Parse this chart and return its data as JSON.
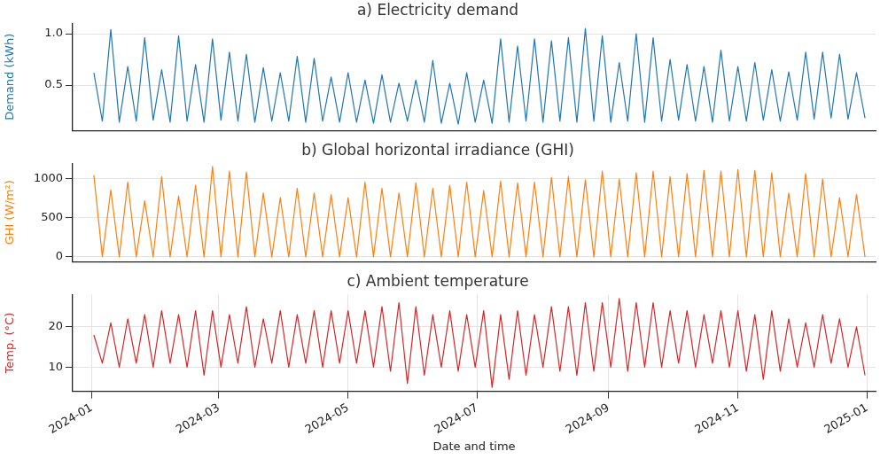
{
  "chart_data": [
    {
      "type": "line",
      "title": "a) Electricity demand",
      "ylabel": "Demand (kWh)",
      "grid": true,
      "legend": false,
      "tick_labels": "y",
      "marker": "none",
      "x": [
        "2024-01-02",
        "2024-01-06",
        "2024-01-10",
        "2024-01-14",
        "2024-01-18",
        "2024-01-22",
        "2024-01-26",
        "2024-01-30",
        "2024-02-03",
        "2024-02-07",
        "2024-02-11",
        "2024-02-15",
        "2024-02-19",
        "2024-02-23",
        "2024-02-27",
        "2024-03-02",
        "2024-03-06",
        "2024-03-10",
        "2024-03-14",
        "2024-03-18",
        "2024-03-22",
        "2024-03-26",
        "2024-03-30",
        "2024-04-03",
        "2024-04-07",
        "2024-04-11",
        "2024-04-15",
        "2024-04-19",
        "2024-04-23",
        "2024-04-27",
        "2024-05-01",
        "2024-05-05",
        "2024-05-09",
        "2024-05-13",
        "2024-05-17",
        "2024-05-21",
        "2024-05-25",
        "2024-05-29",
        "2024-06-02",
        "2024-06-06",
        "2024-06-10",
        "2024-06-14",
        "2024-06-18",
        "2024-06-22",
        "2024-06-26",
        "2024-06-30",
        "2024-07-04",
        "2024-07-08",
        "2024-07-12",
        "2024-07-16",
        "2024-07-20",
        "2024-07-24",
        "2024-07-28",
        "2024-08-01",
        "2024-08-05",
        "2024-08-09",
        "2024-08-13",
        "2024-08-17",
        "2024-08-21",
        "2024-08-25",
        "2024-08-29",
        "2024-09-02",
        "2024-09-06",
        "2024-09-10",
        "2024-09-14",
        "2024-09-18",
        "2024-09-22",
        "2024-09-26",
        "2024-09-30",
        "2024-10-04",
        "2024-10-08",
        "2024-10-12",
        "2024-10-16",
        "2024-10-20",
        "2024-10-24",
        "2024-10-28",
        "2024-11-01",
        "2024-11-05",
        "2024-11-09",
        "2024-11-13",
        "2024-11-17",
        "2024-11-21",
        "2024-11-25",
        "2024-11-29",
        "2024-12-03",
        "2024-12-07",
        "2024-12-11",
        "2024-12-15",
        "2024-12-19",
        "2024-12-23",
        "2024-12-27",
        "2024-12-31"
      ],
      "xlim": [
        "2023-12-23",
        "2025-01-05"
      ],
      "ylim": [
        0.06,
        1.1
      ],
      "yticks": [
        0.5,
        {
          "value": 1,
          "label": "1.0"
        }
      ],
      "series": [
        {
          "color": "#1f77b4",
          "values": [
            0.62,
            0.15,
            1.04,
            0.14,
            0.68,
            0.15,
            0.96,
            0.16,
            0.65,
            0.14,
            0.98,
            0.15,
            0.7,
            0.14,
            0.95,
            0.16,
            0.82,
            0.15,
            0.8,
            0.14,
            0.67,
            0.15,
            0.62,
            0.15,
            0.78,
            0.14,
            0.76,
            0.15,
            0.58,
            0.14,
            0.62,
            0.14,
            0.55,
            0.13,
            0.6,
            0.14,
            0.52,
            0.15,
            0.55,
            0.14,
            0.74,
            0.13,
            0.52,
            0.12,
            0.62,
            0.14,
            0.55,
            0.13,
            0.95,
            0.14,
            0.88,
            0.15,
            0.95,
            0.14,
            0.93,
            0.15,
            0.96,
            0.14,
            1.05,
            0.15,
            0.98,
            0.14,
            0.72,
            0.15,
            1.0,
            0.14,
            0.96,
            0.15,
            0.75,
            0.16,
            0.7,
            0.15,
            0.68,
            0.14,
            0.84,
            0.15,
            0.68,
            0.15,
            0.72,
            0.16,
            0.65,
            0.15,
            0.63,
            0.16,
            0.82,
            0.17,
            0.82,
            0.18,
            0.8,
            0.17,
            0.62,
            0.18
          ]
        }
      ]
    },
    {
      "type": "line",
      "title": "b) Global horizontal irradiance (GHI)",
      "ylabel": "GHI (W/m²)",
      "grid": true,
      "legend": false,
      "tick_labels": "y",
      "marker": "none",
      "x": [
        "2024-01-02",
        "2024-01-06",
        "2024-01-10",
        "2024-01-14",
        "2024-01-18",
        "2024-01-22",
        "2024-01-26",
        "2024-01-30",
        "2024-02-03",
        "2024-02-07",
        "2024-02-11",
        "2024-02-15",
        "2024-02-19",
        "2024-02-23",
        "2024-02-27",
        "2024-03-02",
        "2024-03-06",
        "2024-03-10",
        "2024-03-14",
        "2024-03-18",
        "2024-03-22",
        "2024-03-26",
        "2024-03-30",
        "2024-04-03",
        "2024-04-07",
        "2024-04-11",
        "2024-04-15",
        "2024-04-19",
        "2024-04-23",
        "2024-04-27",
        "2024-05-01",
        "2024-05-05",
        "2024-05-09",
        "2024-05-13",
        "2024-05-17",
        "2024-05-21",
        "2024-05-25",
        "2024-05-29",
        "2024-06-02",
        "2024-06-06",
        "2024-06-10",
        "2024-06-14",
        "2024-06-18",
        "2024-06-22",
        "2024-06-26",
        "2024-06-30",
        "2024-07-04",
        "2024-07-08",
        "2024-07-12",
        "2024-07-16",
        "2024-07-20",
        "2024-07-24",
        "2024-07-28",
        "2024-08-01",
        "2024-08-05",
        "2024-08-09",
        "2024-08-13",
        "2024-08-17",
        "2024-08-21",
        "2024-08-25",
        "2024-08-29",
        "2024-09-02",
        "2024-09-06",
        "2024-09-10",
        "2024-09-14",
        "2024-09-18",
        "2024-09-22",
        "2024-09-26",
        "2024-09-30",
        "2024-10-04",
        "2024-10-08",
        "2024-10-12",
        "2024-10-16",
        "2024-10-20",
        "2024-10-24",
        "2024-10-28",
        "2024-11-01",
        "2024-11-05",
        "2024-11-09",
        "2024-11-13",
        "2024-11-17",
        "2024-11-21",
        "2024-11-25",
        "2024-11-29",
        "2024-12-03",
        "2024-12-07",
        "2024-12-11",
        "2024-12-15",
        "2024-12-19",
        "2024-12-23",
        "2024-12-27",
        "2024-12-31"
      ],
      "xlim": [
        "2023-12-23",
        "2025-01-05"
      ],
      "ylim": [
        -60,
        1200
      ],
      "yticks": [
        0,
        500,
        1000
      ],
      "series": [
        {
          "color": "#ff7f0e",
          "values": [
            1050,
            0,
            860,
            0,
            960,
            0,
            720,
            0,
            1030,
            0,
            780,
            0,
            920,
            0,
            1160,
            0,
            1100,
            0,
            1090,
            0,
            820,
            0,
            760,
            0,
            880,
            0,
            820,
            0,
            800,
            0,
            760,
            0,
            960,
            0,
            880,
            0,
            820,
            0,
            950,
            0,
            880,
            0,
            920,
            0,
            960,
            0,
            850,
            0,
            970,
            0,
            950,
            0,
            960,
            0,
            1020,
            0,
            1030,
            0,
            990,
            0,
            1100,
            0,
            1000,
            0,
            1080,
            0,
            1100,
            0,
            1030,
            0,
            1070,
            0,
            1110,
            0,
            1100,
            0,
            1120,
            0,
            1110,
            0,
            1080,
            0,
            820,
            0,
            1070,
            0,
            1000,
            0,
            760,
            0,
            800,
            0
          ]
        }
      ]
    },
    {
      "type": "line",
      "title": "c) Ambient temperature",
      "xlabel": "Date and time",
      "ylabel": "Temp. (°C)",
      "grid": true,
      "legend": false,
      "marker": "none",
      "x": [
        "2024-01-02",
        "2024-01-06",
        "2024-01-10",
        "2024-01-14",
        "2024-01-18",
        "2024-01-22",
        "2024-01-26",
        "2024-01-30",
        "2024-02-03",
        "2024-02-07",
        "2024-02-11",
        "2024-02-15",
        "2024-02-19",
        "2024-02-23",
        "2024-02-27",
        "2024-03-02",
        "2024-03-06",
        "2024-03-10",
        "2024-03-14",
        "2024-03-18",
        "2024-03-22",
        "2024-03-26",
        "2024-03-30",
        "2024-04-03",
        "2024-04-07",
        "2024-04-11",
        "2024-04-15",
        "2024-04-19",
        "2024-04-23",
        "2024-04-27",
        "2024-05-01",
        "2024-05-05",
        "2024-05-09",
        "2024-05-13",
        "2024-05-17",
        "2024-05-21",
        "2024-05-25",
        "2024-05-29",
        "2024-06-02",
        "2024-06-06",
        "2024-06-10",
        "2024-06-14",
        "2024-06-18",
        "2024-06-22",
        "2024-06-26",
        "2024-06-30",
        "2024-07-04",
        "2024-07-08",
        "2024-07-12",
        "2024-07-16",
        "2024-07-20",
        "2024-07-24",
        "2024-07-28",
        "2024-08-01",
        "2024-08-05",
        "2024-08-09",
        "2024-08-13",
        "2024-08-17",
        "2024-08-21",
        "2024-08-25",
        "2024-08-29",
        "2024-09-02",
        "2024-09-06",
        "2024-09-10",
        "2024-09-14",
        "2024-09-18",
        "2024-09-22",
        "2024-09-26",
        "2024-09-30",
        "2024-10-04",
        "2024-10-08",
        "2024-10-12",
        "2024-10-16",
        "2024-10-20",
        "2024-10-24",
        "2024-10-28",
        "2024-11-01",
        "2024-11-05",
        "2024-11-09",
        "2024-11-13",
        "2024-11-17",
        "2024-11-21",
        "2024-11-25",
        "2024-11-29",
        "2024-12-03",
        "2024-12-07",
        "2024-12-11",
        "2024-12-15",
        "2024-12-19",
        "2024-12-23",
        "2024-12-27",
        "2024-12-31"
      ],
      "xlim": [
        "2023-12-23",
        "2025-01-05"
      ],
      "xticks": [
        {
          "value": "2024-01-01",
          "label": "2024-01"
        },
        {
          "value": "2024-03-01",
          "label": "2024-03"
        },
        {
          "value": "2024-05-01",
          "label": "2024-05"
        },
        {
          "value": "2024-07-01",
          "label": "2024-07"
        },
        {
          "value": "2024-09-01",
          "label": "2024-09"
        },
        {
          "value": "2024-11-01",
          "label": "2024-11"
        },
        {
          "value": "2025-01-01",
          "label": "2025-01"
        }
      ],
      "ylim": [
        4,
        28
      ],
      "yticks": [
        10,
        20
      ],
      "series": [
        {
          "color": "#d62728",
          "values": [
            18,
            11,
            21,
            10,
            22,
            11,
            23,
            10,
            24,
            11,
            23,
            10,
            24,
            8,
            24,
            10,
            23,
            11,
            25,
            10,
            22,
            11,
            24,
            10,
            23,
            11,
            24,
            10,
            24,
            11,
            24,
            11,
            24,
            10,
            25,
            9,
            26,
            6,
            25,
            8,
            23,
            10,
            24,
            9,
            23,
            10,
            24,
            5,
            23,
            7,
            24,
            8,
            23,
            10,
            25,
            9,
            25,
            8,
            26,
            9,
            26,
            10,
            27,
            9,
            26,
            10,
            26,
            10,
            24,
            11,
            24,
            10,
            23,
            11,
            24,
            10,
            24,
            9,
            23,
            7,
            24,
            9,
            22,
            10,
            21,
            10,
            23,
            11,
            22,
            10,
            20,
            8
          ]
        }
      ]
    }
  ]
}
